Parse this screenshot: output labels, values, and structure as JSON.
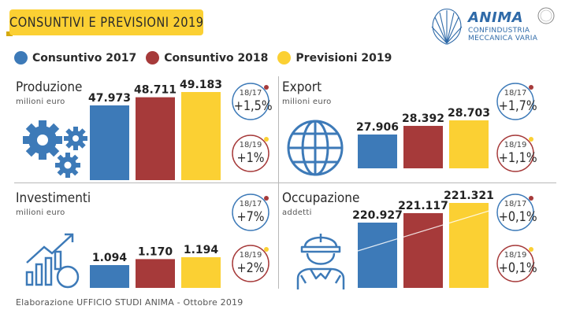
{
  "header": {
    "title": "CONSUNTIVI E PREVISIONI 2019",
    "logo_wordmark": "ANIMA",
    "logo_sub1": "CONFINDUSTRIA",
    "logo_sub2": "MECCANICA VARIA"
  },
  "colors": {
    "consuntivo_2017": "#3d7ab8",
    "consuntivo_2018": "#a63a3a",
    "previsioni_2019": "#fbd033",
    "banner": "#fbd033"
  },
  "legend": [
    {
      "label": "Consuntivo 2017",
      "color": "#3d7ab8"
    },
    {
      "label": "Consuntivo 2018",
      "color": "#a63a3a"
    },
    {
      "label": "Previsioni 2019",
      "color": "#fbd033"
    }
  ],
  "chart_data": [
    {
      "type": "bar",
      "title": "Produzione",
      "ylabel": "milioni euro",
      "categories": [
        "Consuntivo 2017",
        "Consuntivo 2018",
        "Previsioni 2019"
      ],
      "values": [
        47973,
        48711,
        49183
      ],
      "value_labels": [
        "47.973",
        "48.711",
        "49.183"
      ],
      "changes": [
        {
          "period": "18/17",
          "value": "+1,5%"
        },
        {
          "period": "18/19",
          "value": "+1%"
        }
      ]
    },
    {
      "type": "bar",
      "title": "Export",
      "ylabel": "milioni euro",
      "categories": [
        "Consuntivo 2017",
        "Consuntivo 2018",
        "Previsioni 2019"
      ],
      "values": [
        27906,
        28392,
        28703
      ],
      "value_labels": [
        "27.906",
        "28.392",
        "28.703"
      ],
      "changes": [
        {
          "period": "18/17",
          "value": "+1,7%"
        },
        {
          "period": "18/19",
          "value": "+1,1%"
        }
      ]
    },
    {
      "type": "bar",
      "title": "Investimenti",
      "ylabel": "milioni euro",
      "categories": [
        "Consuntivo 2017",
        "Consuntivo 2018",
        "Previsioni 2019"
      ],
      "values": [
        1094,
        1170,
        1194
      ],
      "value_labels": [
        "1.094",
        "1.170",
        "1.194"
      ],
      "changes": [
        {
          "period": "18/17",
          "value": "+7%"
        },
        {
          "period": "18/19",
          "value": "+2%"
        }
      ]
    },
    {
      "type": "bar",
      "title": "Occupazione",
      "ylabel": "addetti",
      "categories": [
        "Consuntivo 2017",
        "Consuntivo 2018",
        "Previsioni 2019"
      ],
      "values": [
        220927,
        221117,
        221321
      ],
      "value_labels": [
        "220.927",
        "221.117",
        "221.321"
      ],
      "changes": [
        {
          "period": "18/17",
          "value": "+0,1%"
        },
        {
          "period": "18/19",
          "value": "+0,1%"
        }
      ]
    }
  ],
  "footer": "Elaborazione UFFICIO STUDI ANIMA - Ottobre 2019"
}
